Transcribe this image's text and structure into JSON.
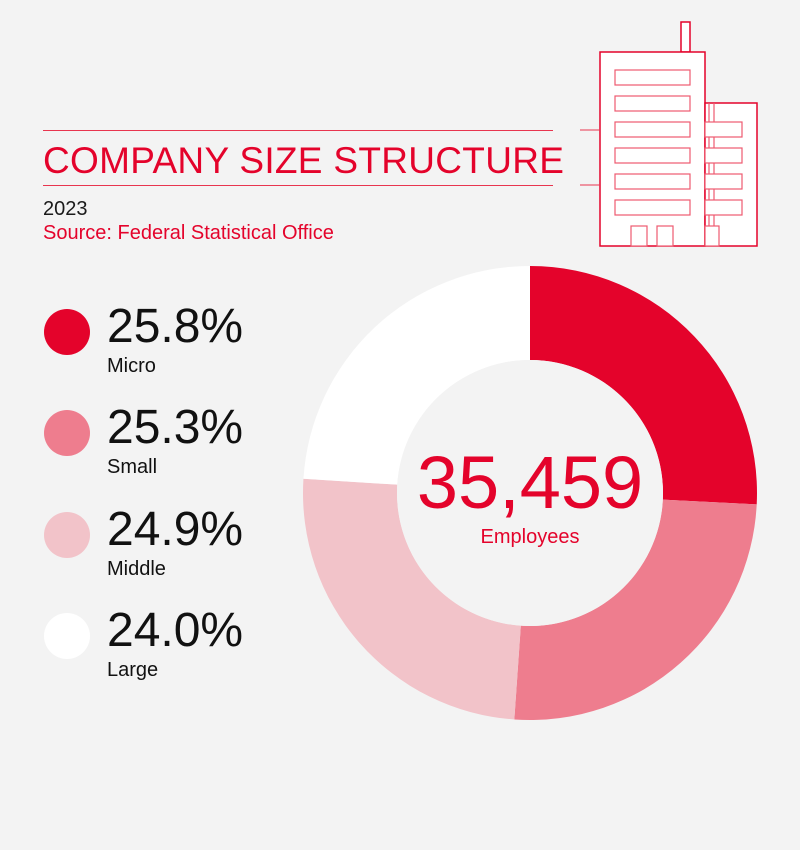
{
  "header": {
    "title": "COMPANY SIZE STRUCTURE",
    "year": "2023",
    "source": "Source: Federal Statistical Office"
  },
  "icons": {
    "header_illustration": "office-building-icon"
  },
  "center": {
    "value": "35,459",
    "label": "Employees"
  },
  "chart_data": {
    "type": "pie",
    "donut": true,
    "title": "COMPANY SIZE STRUCTURE",
    "categories": [
      "Micro",
      "Small",
      "Middle",
      "Large"
    ],
    "values": [
      25.8,
      25.3,
      24.9,
      24.0
    ],
    "value_labels": [
      "25.8%",
      "25.3%",
      "24.9%",
      "24.0%"
    ],
    "colors": [
      "#e4032b",
      "#ee7d8e",
      "#f2c3c9",
      "#ffffff"
    ],
    "start": "top",
    "direction": "clockwise",
    "legend_position": "left",
    "center_value": "35,459",
    "center_label": "Employees"
  },
  "colors": {
    "background": "#f3f3f3",
    "accent": "#e4032b"
  }
}
